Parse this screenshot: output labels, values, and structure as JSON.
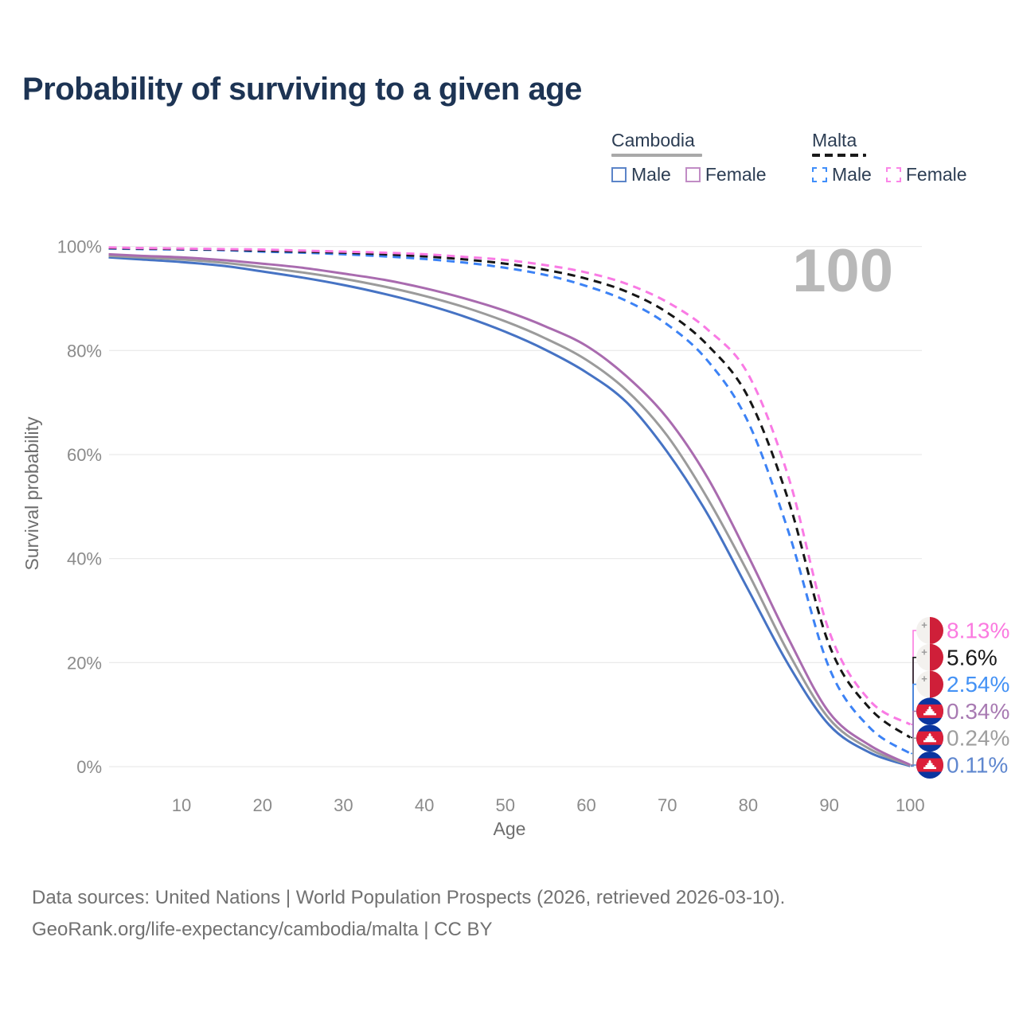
{
  "title": "Probability of surviving to a given age",
  "legend": {
    "groups": [
      {
        "name": "Cambodia",
        "underline_color": "#A9A9A9",
        "underline_style": "solid",
        "underline_width": 114,
        "items": [
          {
            "label": "Male",
            "color": "#5B84C8",
            "dash": false
          },
          {
            "label": "Female",
            "color": "#C18CC5",
            "dash": false
          }
        ]
      },
      {
        "name": "Malta",
        "underline_color": "#1A1A1A",
        "underline_style": "dashed",
        "underline_width": 68,
        "items": [
          {
            "label": "Male",
            "color": "#3F8EFA",
            "dash": true
          },
          {
            "label": "Female",
            "color": "#FB86E8",
            "dash": true
          }
        ]
      }
    ]
  },
  "chart_data": {
    "type": "line",
    "title": "Probability of surviving to a given age",
    "xlabel": "Age",
    "ylabel": "Survival probability",
    "xlim": [
      1,
      100
    ],
    "ylim": [
      0,
      100
    ],
    "grid": "horizontal-only",
    "age_indicator": "100",
    "x_ticks": [
      10,
      20,
      30,
      40,
      50,
      60,
      70,
      80,
      90,
      100
    ],
    "y_ticks": [
      {
        "value": 0,
        "label": "0%"
      },
      {
        "value": 20,
        "label": "20%"
      },
      {
        "value": 40,
        "label": "40%"
      },
      {
        "value": 60,
        "label": "60%"
      },
      {
        "value": 80,
        "label": "80%"
      },
      {
        "value": 100,
        "label": "100%"
      }
    ],
    "x": [
      1,
      5,
      10,
      15,
      20,
      25,
      30,
      35,
      40,
      45,
      50,
      55,
      60,
      65,
      70,
      75,
      80,
      85,
      90,
      95,
      100
    ],
    "series": [
      {
        "name": "Cambodia Male",
        "country": "Cambodia",
        "sex": "Male",
        "color": "#4673C4",
        "dash": false,
        "flag": "cambodia",
        "end_label": "0.11%",
        "label_color": "#5F87CF",
        "values": [
          97.9,
          97.5,
          97.0,
          96.3,
          95.2,
          94.0,
          92.6,
          90.9,
          88.9,
          86.5,
          83.6,
          80.1,
          75.8,
          70.0,
          60.5,
          48.5,
          34.0,
          19.5,
          8.0,
          2.7,
          0.11
        ]
      },
      {
        "name": "Cambodia Both sexes",
        "country": "Cambodia",
        "sex": "Both sexes",
        "color": "#9B9B9B",
        "dash": false,
        "flag": "cambodia",
        "end_label": "0.24%",
        "label_color": "#9E9E9E",
        "values": [
          98.2,
          97.9,
          97.5,
          96.9,
          96.0,
          95.0,
          93.8,
          92.3,
          90.5,
          88.3,
          85.6,
          82.3,
          78.2,
          72.3,
          63.6,
          51.5,
          37.2,
          21.8,
          9.2,
          3.4,
          0.24
        ]
      },
      {
        "name": "Cambodia Female",
        "country": "Cambodia",
        "sex": "Female",
        "color": "#A96BAF",
        "dash": false,
        "flag": "cambodia",
        "end_label": "0.34%",
        "label_color": "#A87AB2",
        "values": [
          98.5,
          98.2,
          97.9,
          97.4,
          96.7,
          95.9,
          94.8,
          93.6,
          92.0,
          90.0,
          87.6,
          84.6,
          80.9,
          75.0,
          67.0,
          55.5,
          40.5,
          24.5,
          10.4,
          4.1,
          0.34
        ]
      },
      {
        "name": "Malta Male",
        "country": "Malta",
        "sex": "Male",
        "color": "#3C82F5",
        "dash": true,
        "flag": "malta",
        "end_label": "2.54%",
        "label_color": "#4492F5",
        "values": [
          99.6,
          99.5,
          99.4,
          99.3,
          99.0,
          98.8,
          98.5,
          98.1,
          97.6,
          96.9,
          95.9,
          94.5,
          92.4,
          89.5,
          85.0,
          78.0,
          66.2,
          45.0,
          19.0,
          7.5,
          2.54
        ]
      },
      {
        "name": "Malta Both sexes",
        "country": "Malta",
        "sex": "Both sexes",
        "color": "#161616",
        "dash": true,
        "flag": "malta",
        "end_label": "5.6%",
        "label_color": "#1A1A1A",
        "values": [
          99.7,
          99.6,
          99.5,
          99.4,
          99.2,
          99.0,
          98.8,
          98.5,
          98.1,
          97.5,
          96.7,
          95.5,
          93.8,
          91.3,
          87.3,
          81.0,
          71.0,
          51.0,
          23.4,
          11.2,
          5.6
        ]
      },
      {
        "name": "Malta Female",
        "country": "Malta",
        "sex": "Female",
        "color": "#F97AE4",
        "dash": true,
        "flag": "malta",
        "end_label": "8.13%",
        "label_color": "#FB7AE0",
        "values": [
          99.8,
          99.7,
          99.6,
          99.5,
          99.4,
          99.2,
          99.0,
          98.8,
          98.5,
          98.0,
          97.4,
          96.4,
          95.0,
          92.8,
          89.3,
          84.0,
          75.4,
          55.5,
          26.0,
          12.7,
          8.13
        ]
      }
    ]
  },
  "footer": {
    "line1": "Data sources: United Nations | World Population Prospects (2026, retrieved 2026-03-10).",
    "line2": "GeoRank.org/life-expectancy/cambodia/malta | CC BY"
  }
}
